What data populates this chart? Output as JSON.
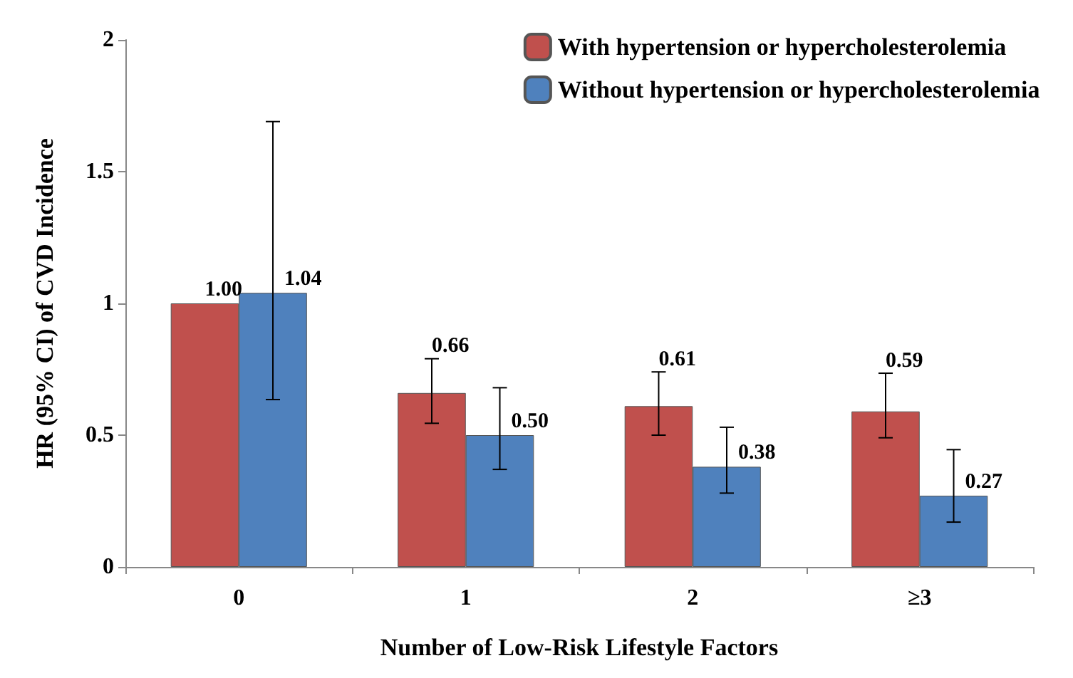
{
  "chart_data": {
    "type": "bar",
    "xlabel": "Number of Low-Risk Lifestyle Factors",
    "ylabel": "HR (95% CI) of CVD Incidence",
    "categories": [
      "0",
      "1",
      "2",
      "≥3"
    ],
    "series": [
      {
        "name": "With hypertension or hypercholesterolemia",
        "color": "#c0504d",
        "values": [
          1.0,
          0.66,
          0.61,
          0.59
        ],
        "value_labels": [
          "1.00",
          "0.66",
          "0.61",
          "0.59"
        ],
        "errors": [
          null,
          [
            0.545,
            0.79
          ],
          [
            0.5,
            0.74
          ],
          [
            0.49,
            0.735
          ]
        ]
      },
      {
        "name": "Without hypertension or hypercholesterolemia",
        "color": "#4f81bd",
        "values": [
          1.04,
          0.5,
          0.38,
          0.27
        ],
        "value_labels": [
          "1.04",
          "0.50",
          "0.38",
          "0.27"
        ],
        "errors": [
          [
            0.635,
            1.69
          ],
          [
            0.37,
            0.68
          ],
          [
            0.28,
            0.53
          ],
          [
            0.17,
            0.445
          ]
        ]
      }
    ],
    "ylim": [
      0,
      2
    ],
    "yticks": [
      0,
      0.5,
      1,
      1.5,
      2
    ],
    "grid": false,
    "legend": "top right"
  }
}
